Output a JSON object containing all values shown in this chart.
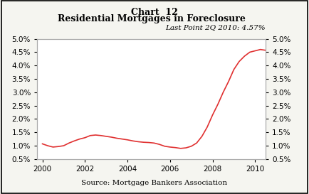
{
  "title_top": "Chart  12",
  "title_main": "Residential Mortgages in Foreclosure",
  "subtitle": "Last Point 2Q 2010: 4.57%",
  "source": "Source: Mortgage Bankers Association",
  "line_color": "#e03030",
  "background_color": "#f5f5f0",
  "plot_bg_color": "#ffffff",
  "ylim": [
    0.005,
    0.05
  ],
  "yticks": [
    0.005,
    0.01,
    0.015,
    0.02,
    0.025,
    0.03,
    0.035,
    0.04,
    0.045,
    0.05
  ],
  "ytick_labels": [
    "0.5%",
    "1.0%",
    "1.5%",
    "2.0%",
    "2.5%",
    "3.0%",
    "3.5%",
    "4.0%",
    "4.5%",
    "5.0%"
  ],
  "xlim": [
    1999.75,
    2010.5
  ],
  "xticks": [
    2000,
    2002,
    2004,
    2006,
    2008,
    2010
  ],
  "x": [
    2000.0,
    2000.25,
    2000.5,
    2000.75,
    2001.0,
    2001.25,
    2001.5,
    2001.75,
    2002.0,
    2002.25,
    2002.5,
    2002.75,
    2003.0,
    2003.25,
    2003.5,
    2003.75,
    2004.0,
    2004.25,
    2004.5,
    2004.75,
    2005.0,
    2005.25,
    2005.5,
    2005.75,
    2006.0,
    2006.25,
    2006.5,
    2006.75,
    2007.0,
    2007.25,
    2007.5,
    2007.75,
    2008.0,
    2008.25,
    2008.5,
    2008.75,
    2009.0,
    2009.25,
    2009.5,
    2009.75,
    2010.0,
    2010.25,
    2010.5
  ],
  "y": [
    0.0107,
    0.01,
    0.0095,
    0.0097,
    0.01,
    0.011,
    0.0118,
    0.0125,
    0.013,
    0.0138,
    0.014,
    0.0138,
    0.0135,
    0.0132,
    0.0128,
    0.0125,
    0.0122,
    0.0118,
    0.0115,
    0.0113,
    0.0112,
    0.011,
    0.0105,
    0.0098,
    0.0095,
    0.0093,
    0.009,
    0.0092,
    0.0098,
    0.011,
    0.0135,
    0.017,
    0.0215,
    0.0255,
    0.03,
    0.034,
    0.0385,
    0.0415,
    0.0435,
    0.045,
    0.0455,
    0.046,
    0.0457
  ]
}
